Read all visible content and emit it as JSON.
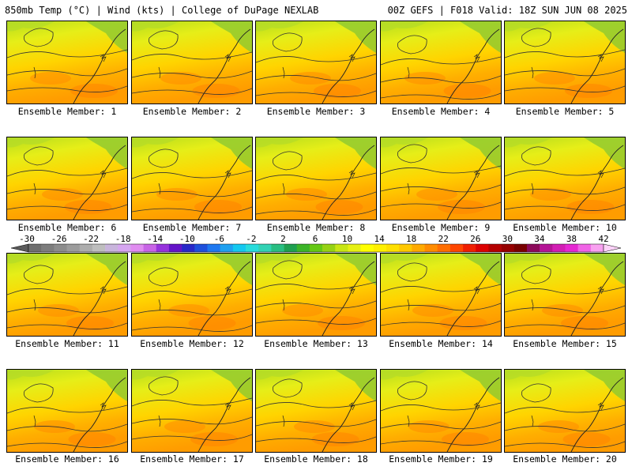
{
  "header": {
    "left_title": "850mb Temp (°C) | Wind (kts) | College of DuPage NEXLAB",
    "right_title": "00Z GEFS | F018 Valid: 18Z SUN JUN 08 2025"
  },
  "panels": [
    {
      "label": "Ensemble Member: 1"
    },
    {
      "label": "Ensemble Member: 2"
    },
    {
      "label": "Ensemble Member: 3"
    },
    {
      "label": "Ensemble Member: 4"
    },
    {
      "label": "Ensemble Member: 5"
    },
    {
      "label": "Ensemble Member: 6"
    },
    {
      "label": "Ensemble Member: 7"
    },
    {
      "label": "Ensemble Member: 8"
    },
    {
      "label": "Ensemble Member: 9"
    },
    {
      "label": "Ensemble Member: 10"
    },
    {
      "label": "Ensemble Member: 11"
    },
    {
      "label": "Ensemble Member: 12"
    },
    {
      "label": "Ensemble Member: 13"
    },
    {
      "label": "Ensemble Member: 14"
    },
    {
      "label": "Ensemble Member: 15"
    },
    {
      "label": "Ensemble Member: 16"
    },
    {
      "label": "Ensemble Member: 17"
    },
    {
      "label": "Ensemble Member: 18"
    },
    {
      "label": "Ensemble Member: 19"
    },
    {
      "label": "Ensemble Member: 20"
    }
  ],
  "colorbar": {
    "labels": [
      "-30",
      "-26",
      "-22",
      "-18",
      "-14",
      "-10",
      "-6",
      "-2",
      "2",
      "6",
      "10",
      "14",
      "18",
      "22",
      "26",
      "30",
      "34",
      "38",
      "42"
    ],
    "colors": [
      "#6e6e6e",
      "#7d7d7d",
      "#8c8c8c",
      "#9c9c9c",
      "#adadad",
      "#bebebe",
      "#c8b4dc",
      "#d6a6f0",
      "#e08cf0",
      "#c864e6",
      "#9632dc",
      "#6414c8",
      "#2828c8",
      "#1e50dc",
      "#1e78f0",
      "#1ea0f0",
      "#14c8f0",
      "#28dcdc",
      "#32d2b4",
      "#28be82",
      "#1ea050",
      "#3cb428",
      "#64c814",
      "#96d214",
      "#c8e614",
      "#e6f014",
      "#ffff00",
      "#fff000",
      "#ffe000",
      "#ffc800",
      "#ffaa00",
      "#ff8c00",
      "#ff6e00",
      "#ff4600",
      "#f01e00",
      "#dc0000",
      "#b40000",
      "#960000",
      "#780000",
      "#8c0a5a",
      "#b41496",
      "#d21eb4",
      "#e628d2",
      "#f064e6",
      "#f8a0f0"
    ]
  }
}
